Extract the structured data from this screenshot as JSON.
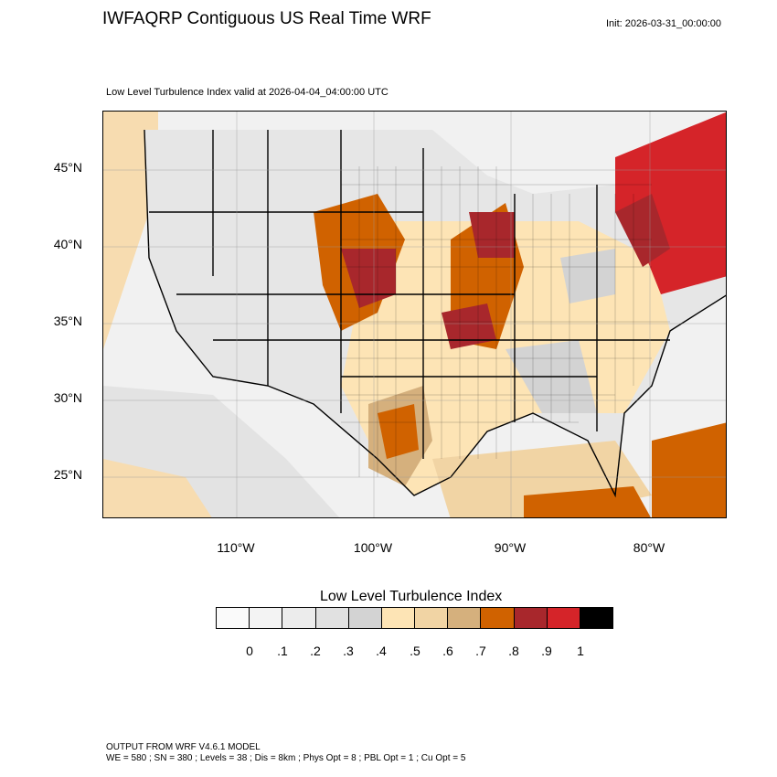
{
  "header": {
    "title": "IWFAQRP Contiguous US Real Time WRF",
    "init": "Init: 2026-03-31_00:00:00",
    "subtitle": "Low Level Turbulence Index valid at 2026-04-04_04:00:00 UTC"
  },
  "map": {
    "lat_labels": [
      "45°N",
      "40°N",
      "35°N",
      "30°N",
      "25°N"
    ],
    "lon_labels": [
      "110°W",
      "100°W",
      "90°W",
      "80°W"
    ]
  },
  "legend": {
    "title": "Low Level Turbulence Index",
    "colors": [
      "#fafafa",
      "#f3f3f3",
      "#ececec",
      "#e1e1e1",
      "#d3d3d3",
      "#fde4b5",
      "#f1d4a4",
      "#d5b07d",
      "#d06200",
      "#a8272c",
      "#d52429",
      "#000000"
    ],
    "ticks": [
      "0",
      ".1",
      ".2",
      ".3",
      ".4",
      ".5",
      ".6",
      ".7",
      ".8",
      ".9",
      "1"
    ]
  },
  "footer": {
    "line1": "OUTPUT FROM WRF V4.6.1 MODEL",
    "line2": "WE = 580 ; SN = 380 ; Levels = 38 ; Dis = 8km ; Phys Opt = 8 ; PBL Opt = 1 ; Cu Opt = 5"
  }
}
